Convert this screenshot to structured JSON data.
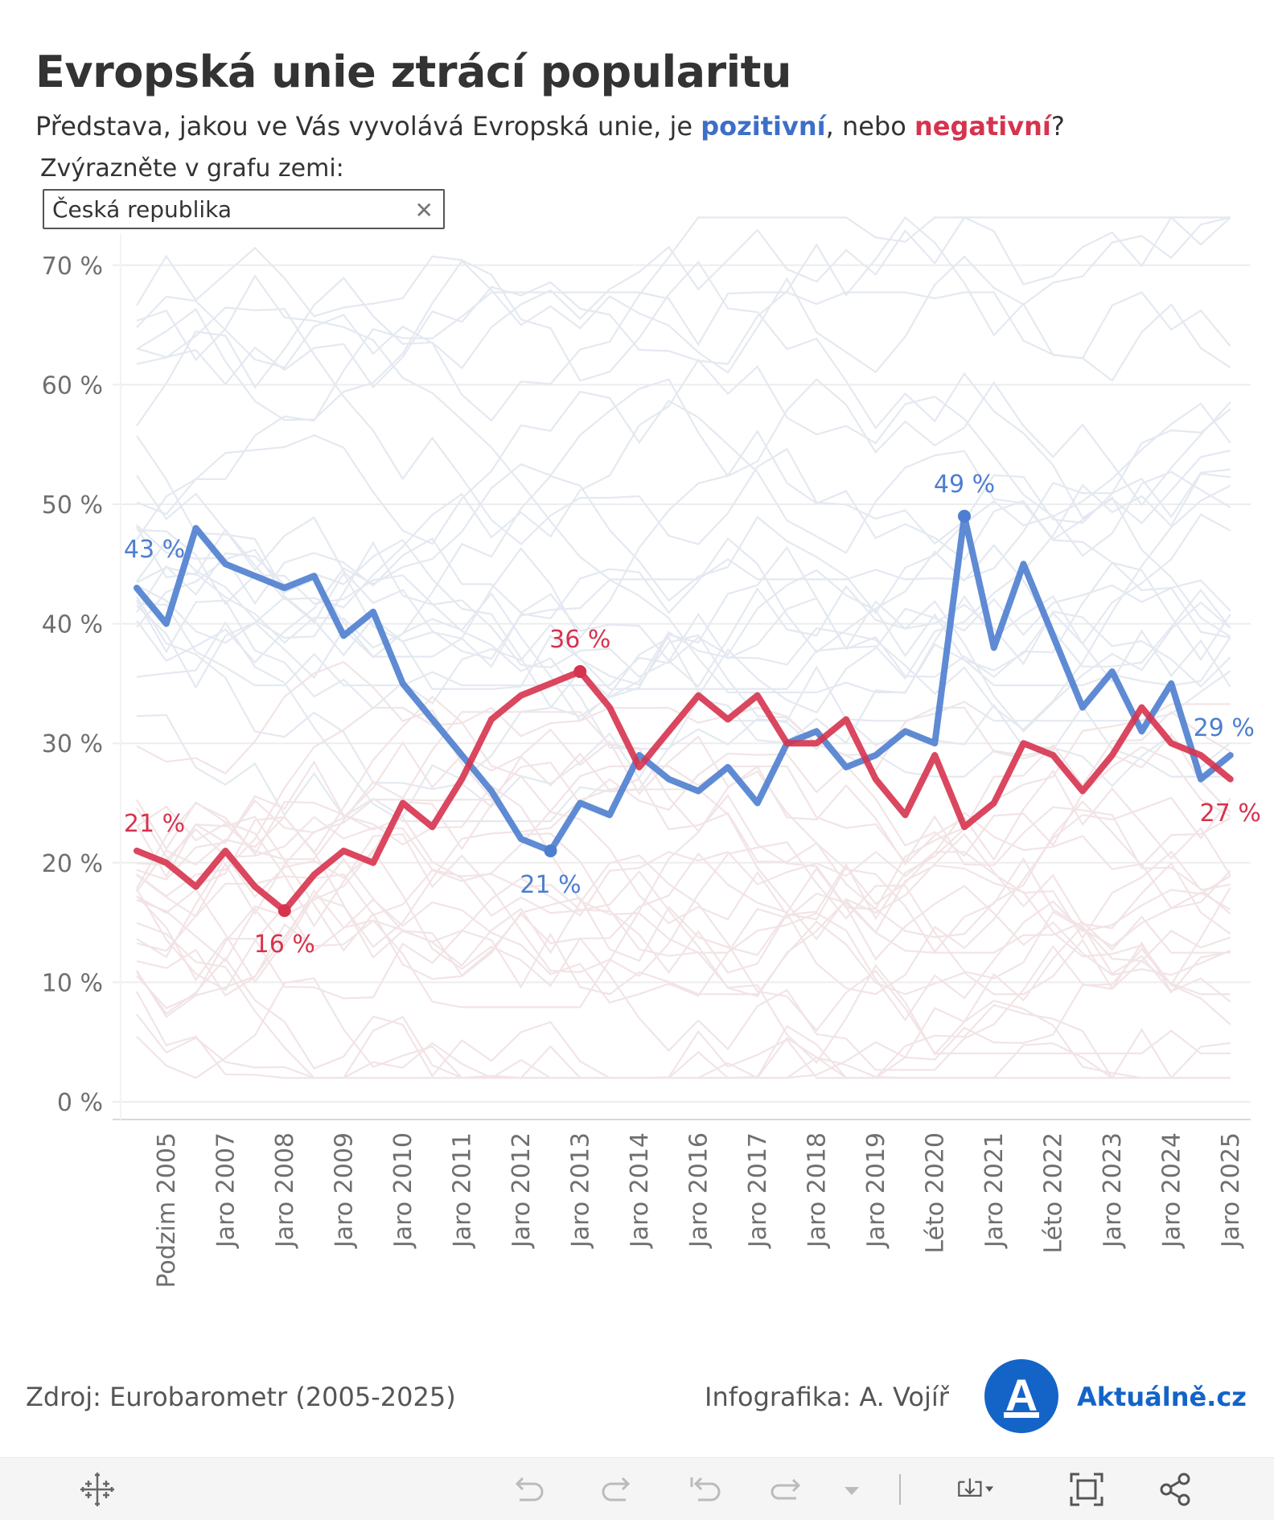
{
  "header": {
    "title": "Evropská unie ztrácí popularitu",
    "subtitle_before": "Představa, jakou ve Vás vyvolává Evropská unie, je ",
    "subtitle_positive": "pozitivní",
    "subtitle_middle": ", nebo ",
    "subtitle_negative": "negativní",
    "subtitle_end": "?"
  },
  "filter": {
    "label": "Zvýrazněte v grafu zemi:",
    "value": "Česká republika",
    "clear_icon": "close-icon"
  },
  "chart_data": {
    "type": "line",
    "title": "Evropská unie ztrácí popularitu",
    "ylim": [
      0,
      70
    ],
    "y_ticks": [
      {
        "value": 0,
        "label": "0 %"
      },
      {
        "value": 10,
        "label": "10 %"
      },
      {
        "value": 20,
        "label": "20 %"
      },
      {
        "value": 30,
        "label": "30 %"
      },
      {
        "value": 40,
        "label": "40 %"
      },
      {
        "value": 50,
        "label": "50 %"
      },
      {
        "value": 60,
        "label": "60 %"
      },
      {
        "value": 70,
        "label": "70 %"
      }
    ],
    "x_tick_labels": [
      {
        "index": 1,
        "label": "Podzim 2005"
      },
      {
        "index": 3,
        "label": "Jaro 2007"
      },
      {
        "index": 5,
        "label": "Jaro 2008"
      },
      {
        "index": 7,
        "label": "Jaro 2009"
      },
      {
        "index": 9,
        "label": "Jaro 2010"
      },
      {
        "index": 11,
        "label": "Jaro 2011"
      },
      {
        "index": 13,
        "label": "Jaro 2012"
      },
      {
        "index": 15,
        "label": "Jaro 2013"
      },
      {
        "index": 17,
        "label": "Jaro 2014"
      },
      {
        "index": 19,
        "label": "Jaro 2016"
      },
      {
        "index": 21,
        "label": "Jaro 2017"
      },
      {
        "index": 23,
        "label": "Jaro 2018"
      },
      {
        "index": 25,
        "label": "Jaro 2019"
      },
      {
        "index": 27,
        "label": "Léto 2020"
      },
      {
        "index": 29,
        "label": "Jaro 2021"
      },
      {
        "index": 31,
        "label": "Léto 2022"
      },
      {
        "index": 33,
        "label": "Jaro 2023"
      },
      {
        "index": 35,
        "label": "Jaro 2024"
      },
      {
        "index": 37,
        "label": "Jaro 2025"
      }
    ],
    "highlighted_country": "Česká republika",
    "series": [
      {
        "name": "pozitivní",
        "color": "#4E7ECF",
        "values": [
          43,
          40,
          48,
          45,
          44,
          43,
          44,
          39,
          41,
          35,
          32,
          29,
          26,
          22,
          21,
          25,
          24,
          29,
          27,
          26,
          28,
          25,
          30,
          31,
          28,
          29,
          31,
          30,
          49,
          38,
          45,
          39,
          33,
          36,
          31,
          35,
          27,
          29
        ]
      },
      {
        "name": "negativní",
        "color": "#D6334E",
        "values": [
          21,
          20,
          18,
          21,
          18,
          16,
          19,
          21,
          20,
          25,
          23,
          27,
          32,
          34,
          35,
          36,
          33,
          28,
          31,
          34,
          32,
          34,
          30,
          30,
          32,
          27,
          24,
          29,
          23,
          25,
          30,
          29,
          26,
          29,
          33,
          30,
          29,
          27
        ]
      }
    ],
    "annotations": [
      {
        "series": 0,
        "index": 0,
        "label": "43 %",
        "dot": false
      },
      {
        "series": 0,
        "index": 14,
        "label": "21 %",
        "dot": true
      },
      {
        "series": 0,
        "index": 28,
        "label": "49 %",
        "dot": true
      },
      {
        "series": 0,
        "index": 37,
        "label": "29 %",
        "dot": false
      },
      {
        "series": 1,
        "index": 0,
        "label": "21 %",
        "dot": false
      },
      {
        "series": 1,
        "index": 5,
        "label": "16 %",
        "dot": true
      },
      {
        "series": 1,
        "index": 15,
        "label": "36 %",
        "dot": true
      },
      {
        "series": 1,
        "index": 37,
        "label": "27 %",
        "dot": false
      }
    ],
    "background_series_colors": {
      "positive": "#E4E9F1",
      "negative": "#F2E4E6"
    }
  },
  "footer": {
    "source": "Zdroj: Eurobarometr (2005-2025)",
    "credit": "Infografika: A. Vojíř",
    "logo_letter": "A",
    "logo_text": "Aktuálně.cz"
  },
  "toolbar": {
    "icons": [
      "tableau-icon",
      "undo-icon",
      "redo-icon",
      "revert-icon",
      "refresh-icon",
      "dropdown-arrow-icon",
      "download-icon",
      "fullscreen-icon",
      "share-icon"
    ]
  }
}
